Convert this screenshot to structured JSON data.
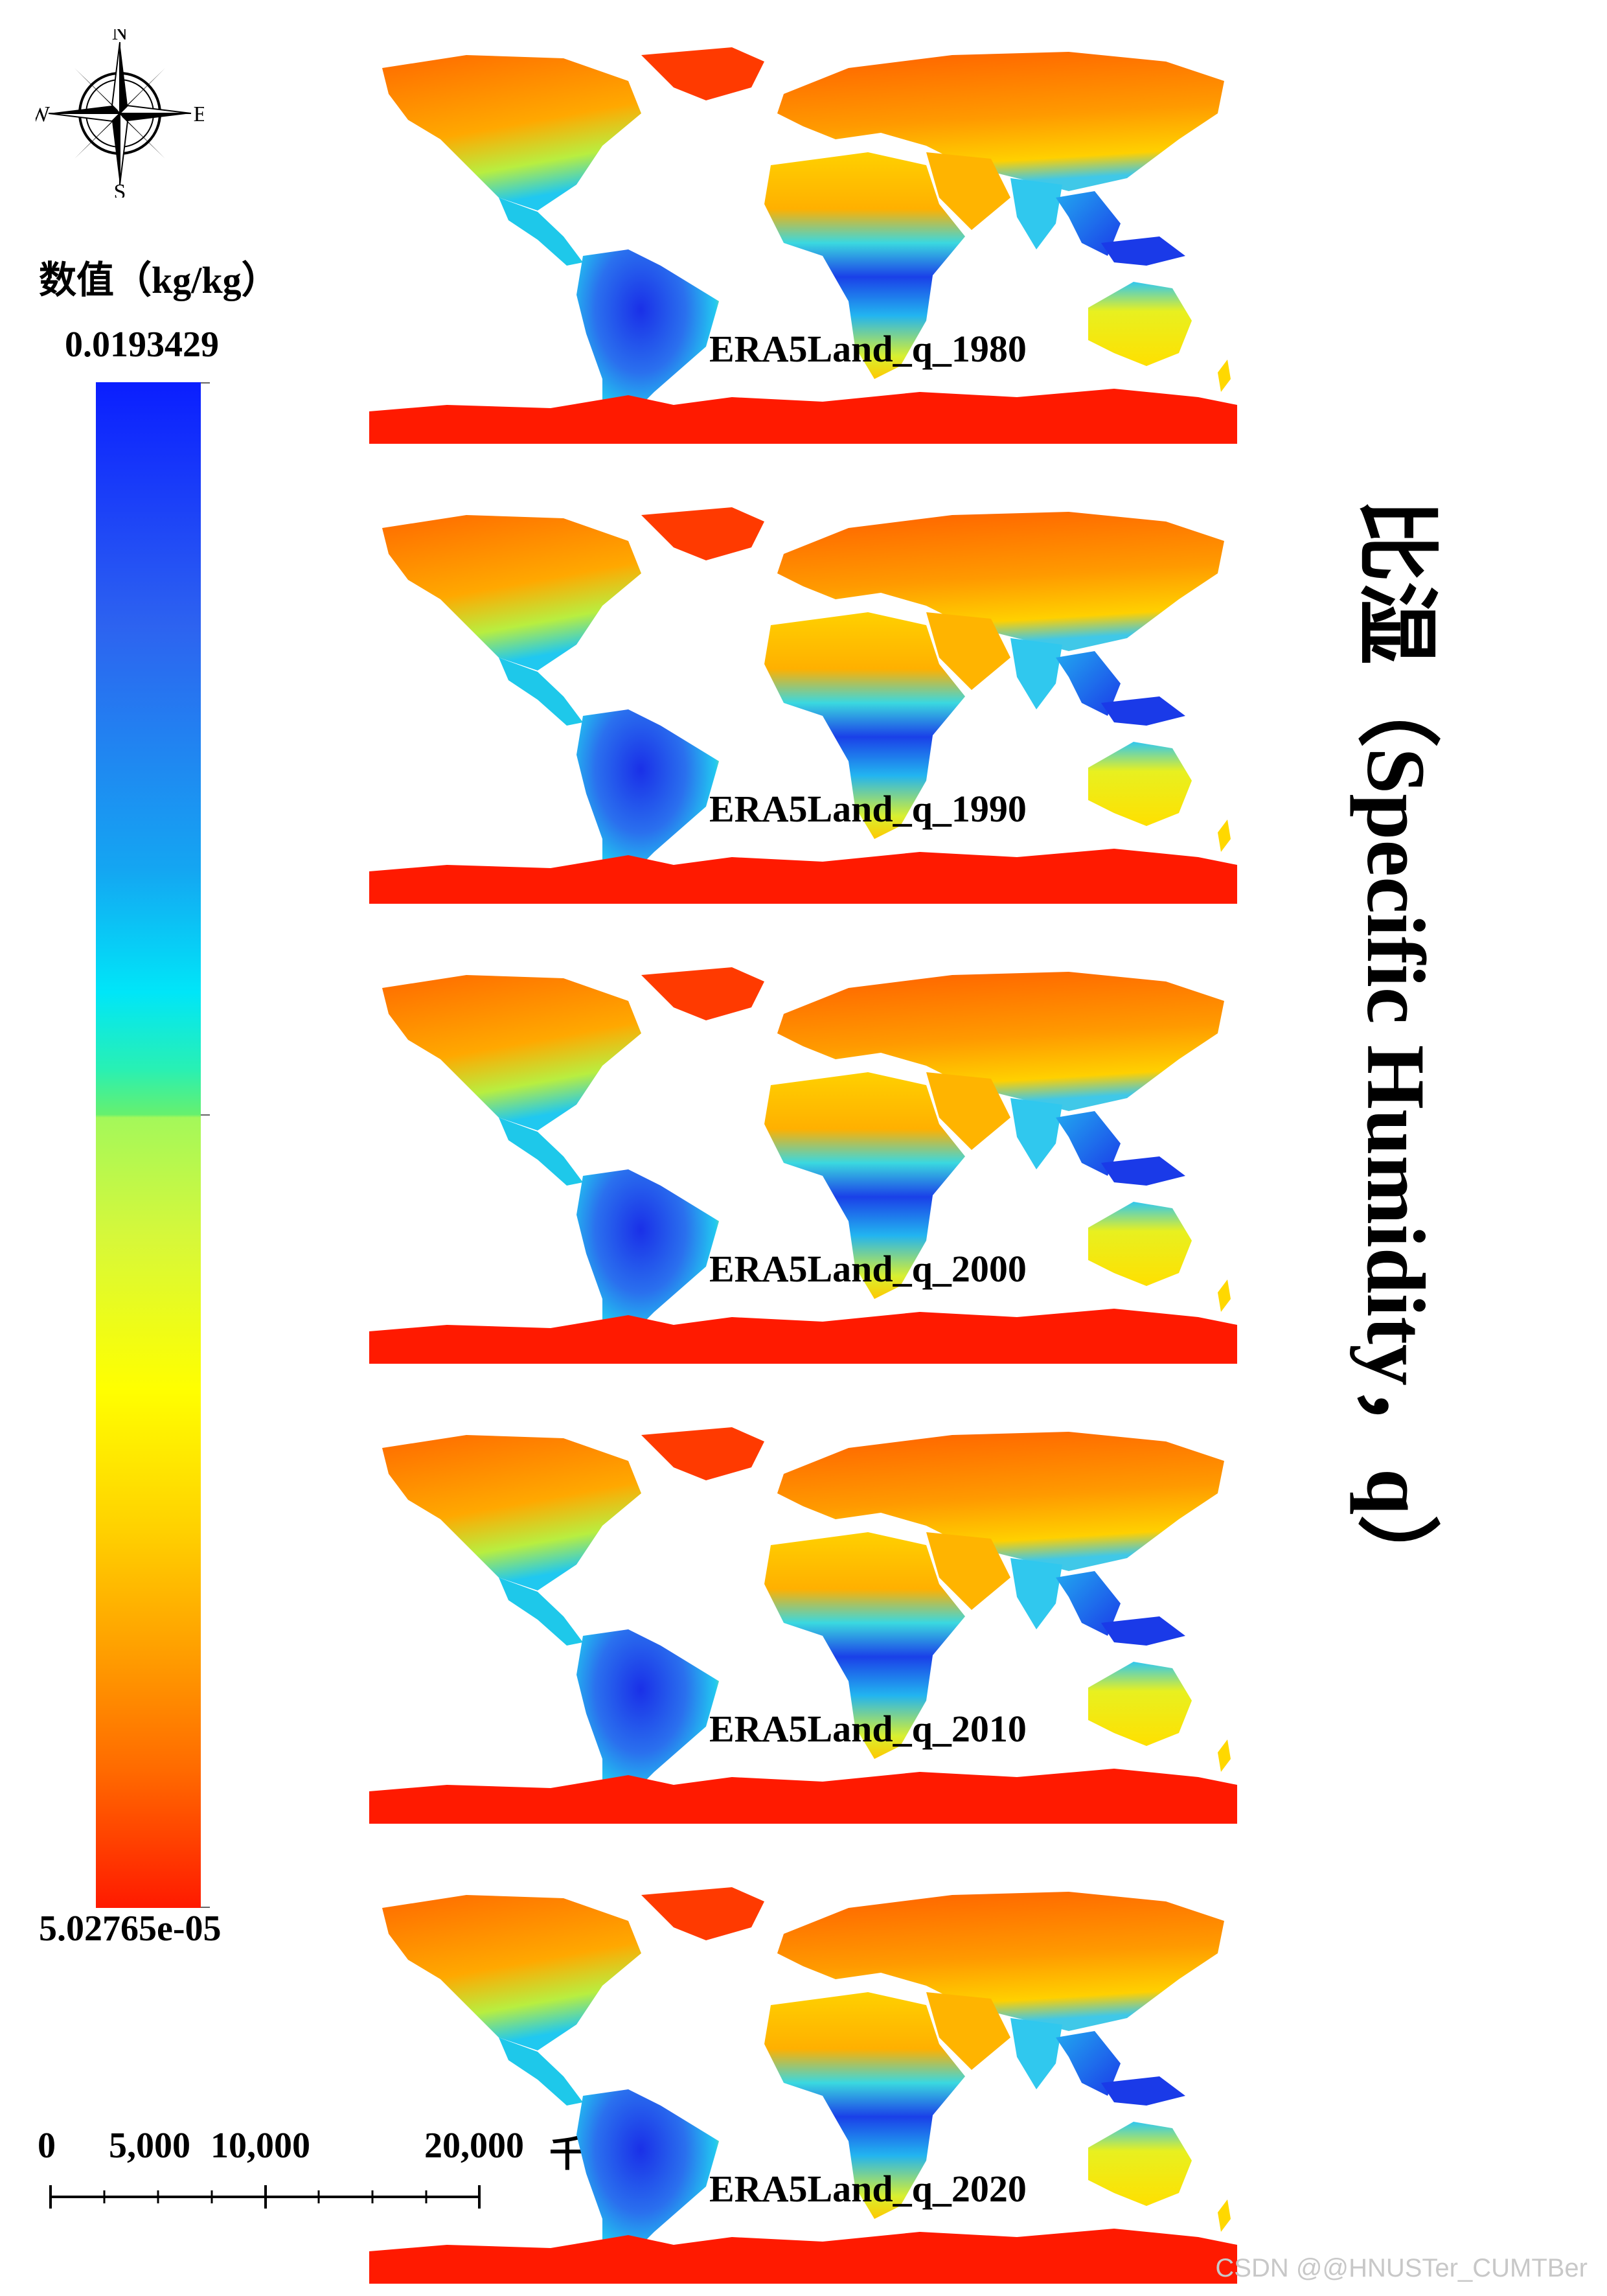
{
  "compass": {
    "north": "N",
    "south": "S",
    "east": "E",
    "west": "W"
  },
  "legend": {
    "title": "数值（kg/kg）",
    "max_label": "0.0193429",
    "min_label": "5.02765e-05",
    "colors": [
      "#0a1eff",
      "#14a6f2",
      "#00e6f8",
      "#66f06e",
      "#ffff00",
      "#ffa000",
      "#ff1a00"
    ]
  },
  "scale_bar": {
    "labels": [
      "0",
      "5,000",
      "10,000",
      "20,000"
    ],
    "unit": "千米"
  },
  "maps": [
    {
      "label": "ERA5Land_q_1980"
    },
    {
      "label": "ERA5Land_q_1990"
    },
    {
      "label": "ERA5Land_q_2000"
    },
    {
      "label": "ERA5Land_q_2010"
    },
    {
      "label": "ERA5Land_q_2020"
    }
  ],
  "side_title": "比湿（Specific Humidity，q）",
  "watermark": "CSDN @@HNUSTer_CUMTBer"
}
